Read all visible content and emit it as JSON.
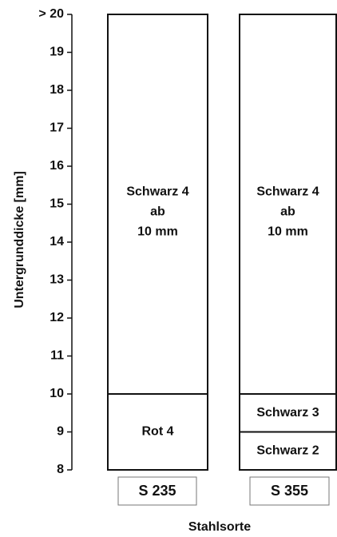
{
  "chart_data": {
    "type": "range",
    "y_label": "Untergrunddicke [mm]",
    "x_label": "Stahlsorte",
    "ylim": [
      8,
      20
    ],
    "yticks": [
      8,
      9,
      10,
      11,
      12,
      13,
      14,
      15,
      16,
      17,
      18,
      19,
      {
        "value": 20,
        "label": "> 20"
      }
    ],
    "bars": [
      {
        "category": "S 235",
        "segments": [
          {
            "lines": [
              "Rot 4"
            ],
            "from": 8,
            "to": 10
          },
          {
            "lines": [
              "Schwarz 4",
              "ab",
              "10 mm"
            ],
            "from": 10,
            "to": 20
          }
        ]
      },
      {
        "category": "S 355",
        "segments": [
          {
            "lines": [
              "Schwarz 2"
            ],
            "from": 8,
            "to": 9
          },
          {
            "lines": [
              "Schwarz 3"
            ],
            "from": 9,
            "to": 10
          },
          {
            "lines": [
              "Schwarz 4",
              "ab",
              "10 mm"
            ],
            "from": 10,
            "to": 20
          }
        ]
      }
    ]
  }
}
